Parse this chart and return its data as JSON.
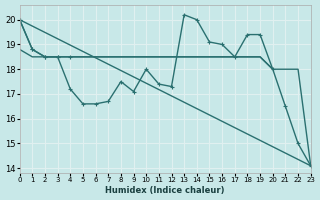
{
  "xlabel": "Humidex (Indice chaleur)",
  "bg_color": "#c8e8e8",
  "grid_color": "#e0f0f0",
  "line_color": "#2a7070",
  "xlim": [
    0,
    23
  ],
  "ylim": [
    13.8,
    20.6
  ],
  "yticks": [
    14,
    15,
    16,
    17,
    18,
    19,
    20
  ],
  "xticks": [
    0,
    1,
    2,
    3,
    4,
    5,
    6,
    7,
    8,
    9,
    10,
    11,
    12,
    13,
    14,
    15,
    16,
    17,
    18,
    19,
    20,
    21,
    22,
    23
  ],
  "line1_x": [
    0,
    1,
    2,
    3,
    4,
    5,
    6,
    7,
    8,
    9,
    10,
    11,
    12,
    13,
    14,
    15,
    16,
    17,
    18,
    19,
    20
  ],
  "line1_y": [
    20.0,
    18.8,
    18.5,
    18.5,
    18.5,
    18.5,
    18.5,
    18.5,
    18.5,
    18.5,
    18.5,
    18.5,
    18.5,
    18.5,
    18.5,
    18.5,
    18.5,
    18.5,
    18.5,
    18.5,
    18.0
  ],
  "line1_has_markers_to": 4,
  "line2_x": [
    0,
    1,
    2,
    3,
    4,
    5,
    6,
    7,
    8,
    9,
    10,
    11,
    12,
    13,
    14,
    15,
    16,
    17,
    18,
    19,
    20,
    21,
    22,
    23
  ],
  "line2_y": [
    20.0,
    18.8,
    18.5,
    18.5,
    17.2,
    16.6,
    16.6,
    16.7,
    17.5,
    17.1,
    18.0,
    17.4,
    17.3,
    20.2,
    20.0,
    19.1,
    19.0,
    18.5,
    19.4,
    19.4,
    18.0,
    16.5,
    15.0,
    14.1
  ],
  "line3_x": [
    0,
    1,
    2,
    3,
    4,
    5,
    6,
    7,
    8,
    9,
    10,
    11,
    12,
    13,
    14,
    15,
    16,
    17,
    18,
    19,
    20,
    21,
    22,
    23
  ],
  "line3_y": [
    18.8,
    18.5,
    18.5,
    18.5,
    18.5,
    18.5,
    18.5,
    18.5,
    18.5,
    18.5,
    18.5,
    18.5,
    18.5,
    18.5,
    18.5,
    18.5,
    18.5,
    18.5,
    18.5,
    18.5,
    18.0,
    18.0,
    18.0,
    14.1
  ],
  "line4_x": [
    0,
    23
  ],
  "line4_y": [
    20.0,
    14.1
  ]
}
